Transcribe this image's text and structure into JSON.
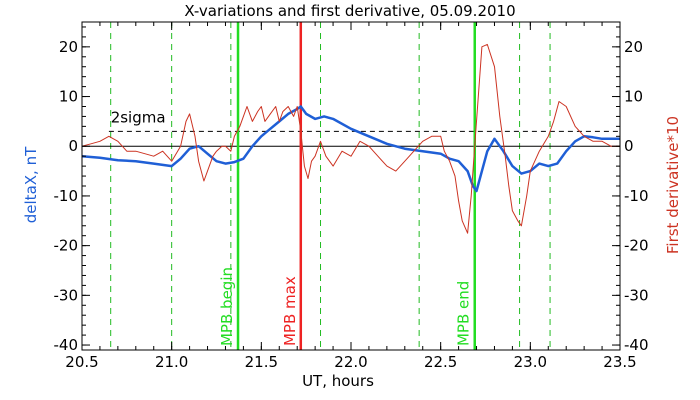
{
  "chart_data": {
    "type": "line",
    "title": "X-variations and first derivative, 05.09.2010",
    "xlabel": "UT, hours",
    "ylabel_left": "deltaX, nT",
    "ylabel_right": "First derivative*10",
    "xlim": [
      20.5,
      23.5
    ],
    "ylim": [
      -41,
      25
    ],
    "x_ticks": [
      20.5,
      21.0,
      21.5,
      22.0,
      22.5,
      23.0,
      23.5
    ],
    "x_tick_labels": [
      "20.5",
      "21.0",
      "21.5",
      "22.0",
      "22.5",
      "23.0",
      "23.5"
    ],
    "y_ticks": [
      -40,
      -30,
      -20,
      -10,
      0,
      10,
      20
    ],
    "y_tick_labels": [
      "-40",
      "-30",
      "-20",
      "-10",
      "0",
      "10",
      "20"
    ],
    "colors": {
      "deltaX": "#1f5fd6",
      "derivative": "#cc3322",
      "mpb_begin_end": "#22dd22",
      "mpb_max": "#ee2222",
      "dashed": "#22bb22"
    },
    "threshold": {
      "label": "2sigma",
      "value": 3
    },
    "dashed_green_lines": [
      20.66,
      21.0,
      21.33,
      21.83,
      22.38,
      22.94,
      23.11
    ],
    "vertical_markers": [
      {
        "label": "MPB begin",
        "x": 21.37,
        "color": "#22dd22"
      },
      {
        "label": "MPB max",
        "x": 21.72,
        "color": "#ee2222"
      },
      {
        "label": "MPB end",
        "x": 22.69,
        "color": "#22dd22"
      }
    ],
    "series": [
      {
        "values_desc": "deltaX",
        "x": [
          20.5,
          20.6,
          20.7,
          20.8,
          20.9,
          21.0,
          21.05,
          21.1,
          21.15,
          21.2,
          21.25,
          21.3,
          21.35,
          21.4,
          21.45,
          21.5,
          21.55,
          21.6,
          21.65,
          21.7,
          21.72,
          21.75,
          21.8,
          21.85,
          21.9,
          22.0,
          22.1,
          22.2,
          22.3,
          22.4,
          22.5,
          22.55,
          22.6,
          22.65,
          22.68,
          22.7,
          22.73,
          22.76,
          22.8,
          22.85,
          22.9,
          22.95,
          23.0,
          23.05,
          23.1,
          23.15,
          23.2,
          23.25,
          23.3,
          23.35,
          23.4,
          23.5
        ],
        "y": [
          -2,
          -2.3,
          -2.8,
          -3,
          -3.5,
          -4,
          -2.5,
          -0.5,
          0,
          -1.5,
          -3,
          -3.5,
          -3.2,
          -2.5,
          0,
          2,
          3.5,
          5,
          6.5,
          7.5,
          8,
          6.5,
          5.5,
          6,
          5.5,
          3.5,
          2,
          0.5,
          -0.5,
          -1,
          -1.5,
          -2.5,
          -3,
          -5,
          -8,
          -9,
          -5,
          -1,
          1.5,
          -1,
          -4,
          -5.5,
          -5,
          -3.5,
          -4,
          -3.5,
          -1,
          1,
          2,
          1.8,
          1.5,
          1.5
        ]
      },
      {
        "values_desc": "derivative",
        "x": [
          20.5,
          20.55,
          20.6,
          20.65,
          20.7,
          20.75,
          20.8,
          20.85,
          20.9,
          20.95,
          21.0,
          21.05,
          21.08,
          21.1,
          21.13,
          21.15,
          21.18,
          21.2,
          21.23,
          21.25,
          21.28,
          21.3,
          21.33,
          21.35,
          21.38,
          21.4,
          21.42,
          21.45,
          21.48,
          21.5,
          21.52,
          21.55,
          21.58,
          21.6,
          21.62,
          21.65,
          21.68,
          21.7,
          21.72,
          21.74,
          21.76,
          21.78,
          21.8,
          21.83,
          21.86,
          21.9,
          21.95,
          22.0,
          22.05,
          22.1,
          22.15,
          22.2,
          22.25,
          22.3,
          22.35,
          22.4,
          22.45,
          22.5,
          22.52,
          22.55,
          22.58,
          22.6,
          22.62,
          22.65,
          22.67,
          22.69,
          22.71,
          22.73,
          22.76,
          22.8,
          22.83,
          22.86,
          22.88,
          22.9,
          22.93,
          22.95,
          22.98,
          23.0,
          23.05,
          23.1,
          23.13,
          23.16,
          23.2,
          23.25,
          23.3,
          23.35,
          23.4,
          23.45,
          23.5
        ],
        "y": [
          0,
          0.5,
          1,
          2,
          1,
          -1,
          -1,
          -1.5,
          -2,
          -1,
          -3,
          0,
          5,
          6.5,
          2,
          -3,
          -7,
          -5,
          -2,
          -1,
          0,
          0,
          -1,
          2,
          4,
          6,
          8,
          5,
          7,
          8,
          5,
          6.5,
          8,
          5,
          7,
          8,
          6,
          8,
          3,
          -4,
          -6.5,
          -3,
          -2,
          1,
          -2,
          -4,
          -1,
          -2,
          1,
          0,
          -2,
          -4,
          -5,
          -3,
          -1,
          1,
          2,
          2,
          -1,
          -3,
          -6,
          -11,
          -15,
          -17.5,
          -10,
          0,
          10,
          20,
          20.5,
          16,
          6,
          -2,
          -8,
          -13,
          -15,
          -16,
          -10,
          -5,
          -1,
          2,
          5,
          9,
          8,
          4,
          2,
          1,
          1,
          0,
          0
        ]
      }
    ]
  }
}
